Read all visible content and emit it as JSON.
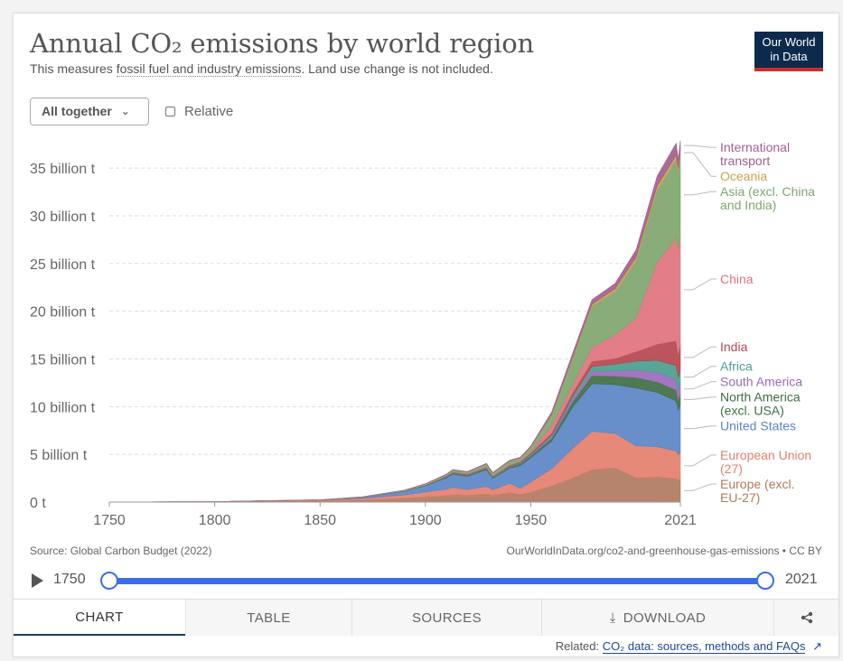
{
  "header": {
    "title": "Annual CO₂ emissions by world region",
    "subtitle_pre": "This measures ",
    "subtitle_link": "fossil fuel and industry emissions",
    "subtitle_post": ". Land use change is not included.",
    "logo_line1": "Our World",
    "logo_line2": "in Data"
  },
  "controls": {
    "dropdown_label": "All together",
    "relative_label": "Relative"
  },
  "chart_data": {
    "type": "area",
    "stacked": true,
    "title": "Annual CO₂ emissions by world region",
    "ylabel": "billion t",
    "ylim": [
      0,
      37
    ],
    "yticks": [
      0,
      5,
      10,
      15,
      20,
      25,
      30,
      35
    ],
    "ytick_labels": [
      "0 t",
      "5 billion t",
      "10 billion t",
      "15 billion t",
      "20 billion t",
      "25 billion t",
      "30 billion t",
      "35 billion t"
    ],
    "xlim": [
      1750,
      2021
    ],
    "xticks": [
      1750,
      1800,
      1850,
      1900,
      1950,
      2021
    ],
    "x": [
      1750,
      1800,
      1850,
      1870,
      1890,
      1900,
      1910,
      1913,
      1920,
      1929,
      1932,
      1940,
      1945,
      1950,
      1960,
      1970,
      1979,
      1990,
      2000,
      2010,
      2019,
      2020,
      2021
    ],
    "series": [
      {
        "name": "Europe (excl. EU-27)",
        "label_lines": [
          "Europe (excl.",
          "EU-27)"
        ],
        "color": "#b07a5f",
        "values": [
          0.005,
          0.02,
          0.12,
          0.22,
          0.4,
          0.55,
          0.7,
          0.78,
          0.72,
          0.85,
          0.7,
          1.0,
          0.8,
          1.05,
          1.7,
          2.55,
          3.4,
          3.6,
          2.55,
          2.65,
          2.45,
          2.3,
          2.4
        ]
      },
      {
        "name": "European Union (27)",
        "label_lines": [
          "European Union",
          "(27)"
        ],
        "color": "#e57f6e",
        "values": [
          0.005,
          0.02,
          0.07,
          0.17,
          0.35,
          0.5,
          0.65,
          0.75,
          0.6,
          0.8,
          0.6,
          0.95,
          0.65,
          1.05,
          1.8,
          3.1,
          4.0,
          3.6,
          3.35,
          3.15,
          2.9,
          2.65,
          2.8
        ]
      },
      {
        "name": "United States",
        "label_lines": [
          "United States"
        ],
        "color": "#5b86c6",
        "values": [
          0,
          0.0,
          0.03,
          0.1,
          0.38,
          0.66,
          1.2,
          1.4,
          1.38,
          1.75,
          1.2,
          1.6,
          2.4,
          2.55,
          2.9,
          4.35,
          5.0,
          5.1,
          6.05,
          5.7,
          5.25,
          4.7,
          5.0
        ]
      },
      {
        "name": "North America (excl. USA)",
        "label_lines": [
          "North America",
          "(excl. USA)"
        ],
        "color": "#3f6e43",
        "values": [
          0,
          0,
          0.002,
          0.01,
          0.02,
          0.04,
          0.08,
          0.1,
          0.1,
          0.1,
          0.08,
          0.12,
          0.15,
          0.18,
          0.3,
          0.55,
          0.85,
          0.9,
          1.1,
          1.1,
          1.15,
          1.05,
          1.1
        ]
      },
      {
        "name": "South America",
        "label_lines": [
          "South America"
        ],
        "color": "#9b6bba",
        "values": [
          0,
          0,
          0,
          0.002,
          0.005,
          0.01,
          0.02,
          0.03,
          0.03,
          0.04,
          0.04,
          0.05,
          0.06,
          0.1,
          0.17,
          0.3,
          0.45,
          0.55,
          0.8,
          1.0,
          1.1,
          1.0,
          1.1
        ]
      },
      {
        "name": "Africa",
        "label_lines": [
          "Africa"
        ],
        "color": "#4a9e8f",
        "values": [
          0,
          0,
          0,
          0.002,
          0.005,
          0.01,
          0.02,
          0.03,
          0.03,
          0.04,
          0.04,
          0.05,
          0.06,
          0.09,
          0.16,
          0.3,
          0.5,
          0.7,
          0.92,
          1.25,
          1.45,
          1.35,
          1.4
        ]
      },
      {
        "name": "India",
        "label_lines": [
          "India"
        ],
        "color": "#b4464f",
        "values": [
          0,
          0,
          0,
          0.005,
          0.01,
          0.02,
          0.04,
          0.05,
          0.05,
          0.06,
          0.05,
          0.08,
          0.09,
          0.12,
          0.22,
          0.37,
          0.55,
          0.6,
          1.0,
          1.7,
          2.6,
          2.45,
          2.7
        ]
      },
      {
        "name": "China",
        "label_lines": [
          "China"
        ],
        "color": "#e0737e",
        "values": [
          0,
          0,
          0,
          0,
          0.001,
          0.002,
          0.01,
          0.01,
          0.02,
          0.03,
          0.03,
          0.04,
          0.03,
          0.08,
          0.78,
          0.8,
          1.45,
          2.5,
          3.5,
          8.6,
          10.7,
          11.0,
          11.5
        ]
      },
      {
        "name": "Asia (excl. China and India)",
        "label_lines": [
          "Asia (excl. China",
          "and India)"
        ],
        "color": "#7ea66e",
        "values": [
          0.002,
          0.005,
          0.02,
          0.04,
          0.06,
          0.1,
          0.15,
          0.18,
          0.2,
          0.3,
          0.28,
          0.4,
          0.35,
          0.5,
          1.1,
          2.8,
          4.3,
          4.5,
          6.0,
          7.5,
          8.3,
          8.0,
          8.4
        ]
      },
      {
        "name": "Oceania",
        "label_lines": [
          "Oceania"
        ],
        "color": "#c9a24f",
        "values": [
          0,
          0,
          0,
          0.001,
          0.004,
          0.01,
          0.02,
          0.02,
          0.02,
          0.03,
          0.03,
          0.03,
          0.04,
          0.05,
          0.08,
          0.15,
          0.21,
          0.3,
          0.38,
          0.45,
          0.45,
          0.44,
          0.44
        ]
      },
      {
        "name": "International transport",
        "label_lines": [
          "International",
          "transport"
        ],
        "color": "#a35e8f",
        "values": [
          0,
          0,
          0,
          0.002,
          0.01,
          0.02,
          0.04,
          0.05,
          0.05,
          0.06,
          0.05,
          0.07,
          0.06,
          0.1,
          0.25,
          0.4,
          0.5,
          0.55,
          0.78,
          1.05,
          1.25,
          0.95,
          1.05
        ]
      }
    ]
  },
  "footer": {
    "source": "Source: Global Carbon Budget (2022)",
    "url": "OurWorldInData.org/co2-and-greenhouse-gas-emissions • CC BY"
  },
  "timeline": {
    "start": "1750",
    "end": "2021"
  },
  "tabs": {
    "chart": "CHART",
    "table": "TABLE",
    "sources": "SOURCES",
    "download": "DOWNLOAD"
  },
  "related": {
    "prefix": "Related:",
    "link": "CO₂ data: sources, methods and FAQs"
  }
}
